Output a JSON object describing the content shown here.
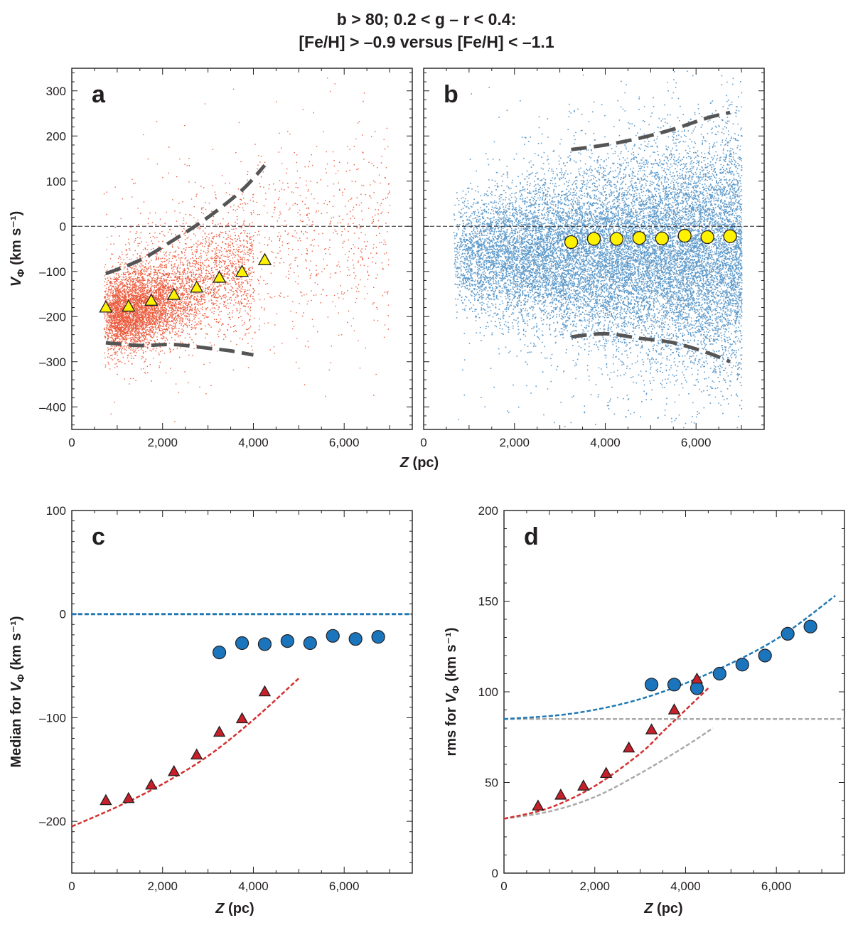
{
  "title": {
    "line1": "b > 80; 0.2 < g – r < 0.4:",
    "line2": "[Fe/H] > –0.9 versus [Fe/H] < –1.1"
  },
  "colors": {
    "red_points": "#e8401c",
    "blue_points": "#1a6fb4",
    "yellow_marker": "#fff200",
    "red_marker": "#c8202a",
    "blue_marker": "#1b75bc",
    "red_fit": "#d32f2f",
    "blue_fit": "#1f78b4",
    "gray_fit": "#aaaaaa",
    "envelope": "#555555"
  },
  "chart_data": [
    {
      "panel": "a",
      "type": "scatter",
      "xlabel": "Z (pc)",
      "ylabel": "VΦ (km s⁻¹)",
      "xlim": [
        0,
        7500
      ],
      "ylim": [
        -450,
        350
      ],
      "xticks": [
        0,
        2000,
        4000,
        6000
      ],
      "xtick_labels": [
        "0",
        "2,000",
        "4,000",
        "6,000"
      ],
      "yticks": [
        -400,
        -300,
        -200,
        -100,
        0,
        100,
        200,
        300
      ],
      "ytick_labels": [
        "–400",
        "–300",
        "–200",
        "–100",
        "0",
        "100",
        "200",
        "300"
      ],
      "cloud": {
        "z_min": 700,
        "z_max": 7000,
        "center_z": 1500,
        "center_v": -185,
        "note_points": "dense red cloud"
      },
      "medians": {
        "z": [
          750,
          1250,
          1750,
          2250,
          2750,
          3250,
          3750,
          4250
        ],
        "v": [
          -180,
          -178,
          -165,
          -152,
          -136,
          -114,
          -101,
          -75
        ]
      },
      "envelope_upper": {
        "z": [
          750,
          1500,
          2250,
          3000,
          3750,
          4250
        ],
        "v": [
          -105,
          -75,
          -30,
          20,
          80,
          135
        ]
      },
      "envelope_lower": {
        "z": [
          750,
          1500,
          2250,
          3000,
          3500,
          4000
        ],
        "v": [
          -258,
          -264,
          -262,
          -270,
          -276,
          -285
        ]
      },
      "zero_line": true
    },
    {
      "panel": "b",
      "type": "scatter",
      "xlabel": "Z (pc)",
      "xlim": [
        0,
        7500
      ],
      "ylim": [
        -450,
        350
      ],
      "xticks": [
        0,
        2000,
        4000,
        6000
      ],
      "xtick_labels": [
        "0",
        "2,000",
        "4,000",
        "6,000"
      ],
      "cloud": {
        "z_min": 700,
        "z_max": 7000,
        "center_v": -60,
        "note_points": "dense blue cloud"
      },
      "medians": {
        "z": [
          3250,
          3750,
          4250,
          4750,
          5250,
          5750,
          6250,
          6750
        ],
        "v": [
          -35,
          -28,
          -28,
          -26,
          -27,
          -21,
          -24,
          -22
        ]
      },
      "envelope_upper": {
        "z": [
          3250,
          4000,
          4750,
          5500,
          6250,
          6750
        ],
        "v": [
          170,
          180,
          195,
          215,
          240,
          252
        ]
      },
      "envelope_lower": {
        "z": [
          3250,
          4000,
          4750,
          5500,
          6250,
          6750
        ],
        "v": [
          -245,
          -238,
          -248,
          -258,
          -280,
          -300
        ]
      },
      "zero_line": true
    },
    {
      "panel": "c",
      "type": "scatter",
      "xlabel": "Z (pc)",
      "ylabel": "Median for VΦ (km s⁻¹)",
      "xlim": [
        0,
        7500
      ],
      "ylim": [
        -250,
        100
      ],
      "xticks": [
        0,
        2000,
        4000,
        6000
      ],
      "xtick_labels": [
        "0",
        "2,000",
        "4,000",
        "6,000"
      ],
      "yticks": [
        -200,
        -100,
        0,
        100
      ],
      "ytick_labels": [
        "–200",
        "–100",
        "0",
        "100"
      ],
      "series": [
        {
          "marker": "triangle",
          "z": [
            750,
            1250,
            1750,
            2250,
            2750,
            3250,
            3750,
            4250
          ],
          "v": [
            -180,
            -178,
            -165,
            -152,
            -136,
            -114,
            -101,
            -75
          ]
        },
        {
          "marker": "circle",
          "z": [
            3250,
            3750,
            4250,
            4750,
            5250,
            5750,
            6250,
            6750
          ],
          "v": [
            -37,
            -28,
            -29,
            -26,
            -28,
            -21,
            -24,
            -22
          ]
        }
      ],
      "fits": [
        {
          "style": "red-dashed",
          "z": [
            0,
            1000,
            2000,
            3000,
            4000,
            5000
          ],
          "v": [
            -205,
            -186,
            -164,
            -137,
            -102,
            -62
          ]
        },
        {
          "style": "blue-dashed",
          "z": [
            0,
            7500
          ],
          "v": [
            0,
            0
          ]
        }
      ]
    },
    {
      "panel": "d",
      "type": "scatter",
      "xlabel": "Z (pc)",
      "ylabel": "rms for VΦ (km s⁻¹)",
      "xlim": [
        0,
        7500
      ],
      "ylim": [
        0,
        200
      ],
      "xticks": [
        0,
        2000,
        4000,
        6000
      ],
      "xtick_labels": [
        "0",
        "2,000",
        "4,000",
        "6,000"
      ],
      "yticks": [
        0,
        50,
        100,
        150,
        200
      ],
      "ytick_labels": [
        "0",
        "50",
        "100",
        "150",
        "200"
      ],
      "series": [
        {
          "marker": "triangle",
          "z": [
            750,
            1250,
            1750,
            2250,
            2750,
            3250,
            3750,
            4250
          ],
          "v": [
            37,
            43,
            48,
            55,
            69,
            79,
            90,
            107
          ]
        },
        {
          "marker": "circle",
          "z": [
            3250,
            3750,
            4250,
            4750,
            5250,
            5750,
            6250,
            6750
          ],
          "v": [
            104,
            104,
            102,
            110,
            115,
            120,
            132,
            136
          ]
        }
      ],
      "fits": [
        {
          "style": "red-dashed",
          "z": [
            0,
            1000,
            2000,
            3000,
            3500,
            4000,
            4500
          ],
          "v": [
            30,
            36,
            48,
            66,
            78,
            90,
            102
          ]
        },
        {
          "style": "blue-dashed",
          "z": [
            0,
            1500,
            3000,
            4500,
            6000,
            7300
          ],
          "v": [
            85,
            88,
            96,
            110,
            129,
            153
          ]
        },
        {
          "style": "gray-dashed",
          "z": [
            0,
            7500
          ],
          "v": [
            85,
            85
          ]
        },
        {
          "style": "gray-dashed",
          "z": [
            0,
            1000,
            2000,
            3000,
            4000,
            4600
          ],
          "v": [
            30,
            34,
            42,
            55,
            70,
            80
          ]
        }
      ]
    }
  ]
}
